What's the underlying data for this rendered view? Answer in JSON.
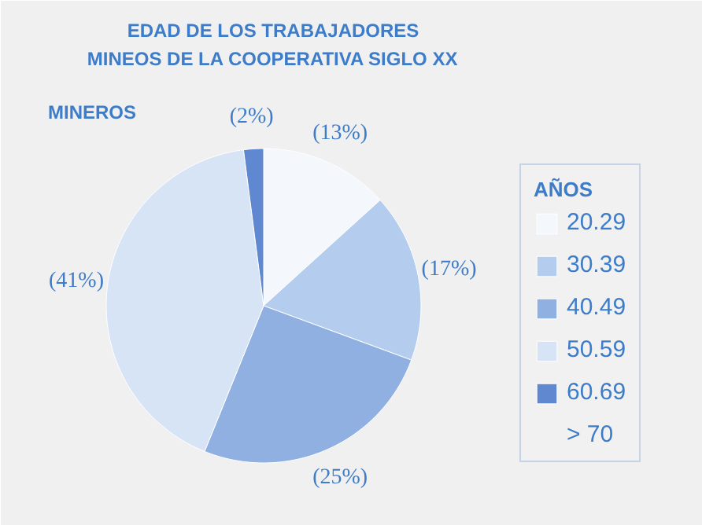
{
  "chart_data": {
    "type": "pie",
    "title": "EDAD DE LOS TRABAJADORES\nMINEOS DE LA COOPERATIVA SIGLO XX",
    "legend_title": "AÑOS",
    "legend": "right",
    "categories": [
      "20.29",
      "30.39",
      "40.49",
      "50.59",
      "60.69",
      "> 70"
    ],
    "values": [
      13,
      17,
      25,
      41,
      2,
      null
    ],
    "value_labels": [
      "(13%)",
      "(17%)",
      "(25%)",
      "(41%)",
      "(2%)",
      null
    ],
    "colors": [
      "#f4f8fc",
      "#b4cdee",
      "#8fb0e0",
      "#d6e4f6",
      "#5f88d0",
      "#eef3fa"
    ],
    "annotations": [
      "MINEROS"
    ]
  }
}
